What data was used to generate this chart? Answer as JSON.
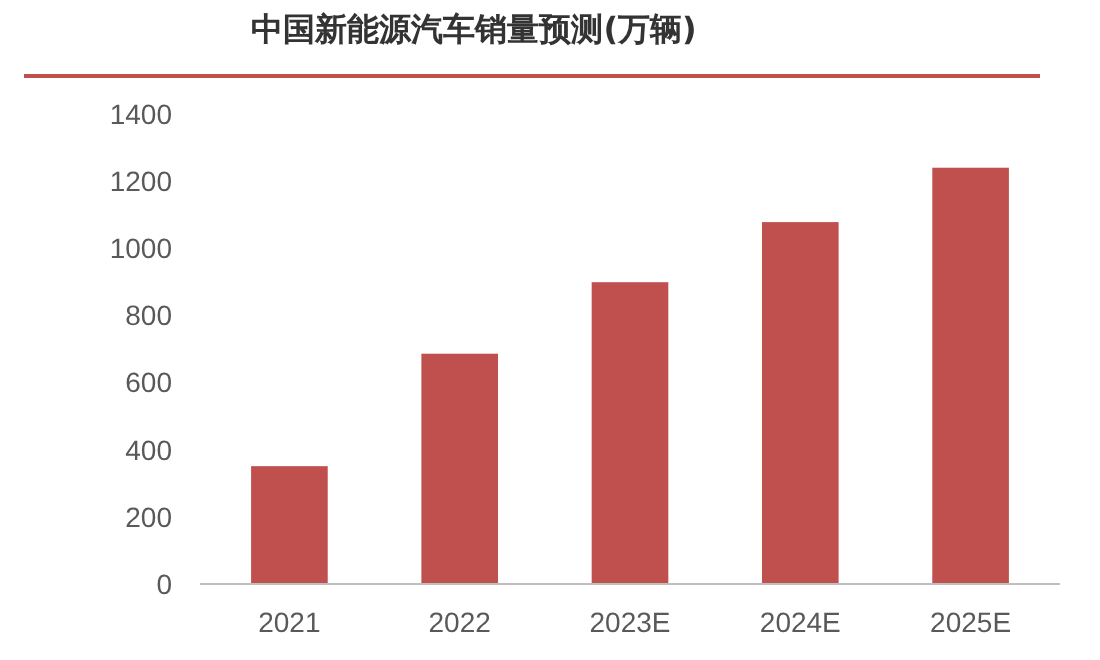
{
  "chart_data": {
    "type": "bar",
    "title": "中国新能源汽车销量预测(万辆)",
    "categories": [
      "2021",
      "2022",
      "2023E",
      "2024E",
      "2025E"
    ],
    "values": [
      351,
      686,
      899,
      1078,
      1240
    ],
    "color": "#c0504d",
    "ylim": [
      0,
      1400
    ],
    "yticks": [
      0,
      200,
      400,
      600,
      800,
      1000,
      1200,
      1400
    ],
    "grid": false
  }
}
